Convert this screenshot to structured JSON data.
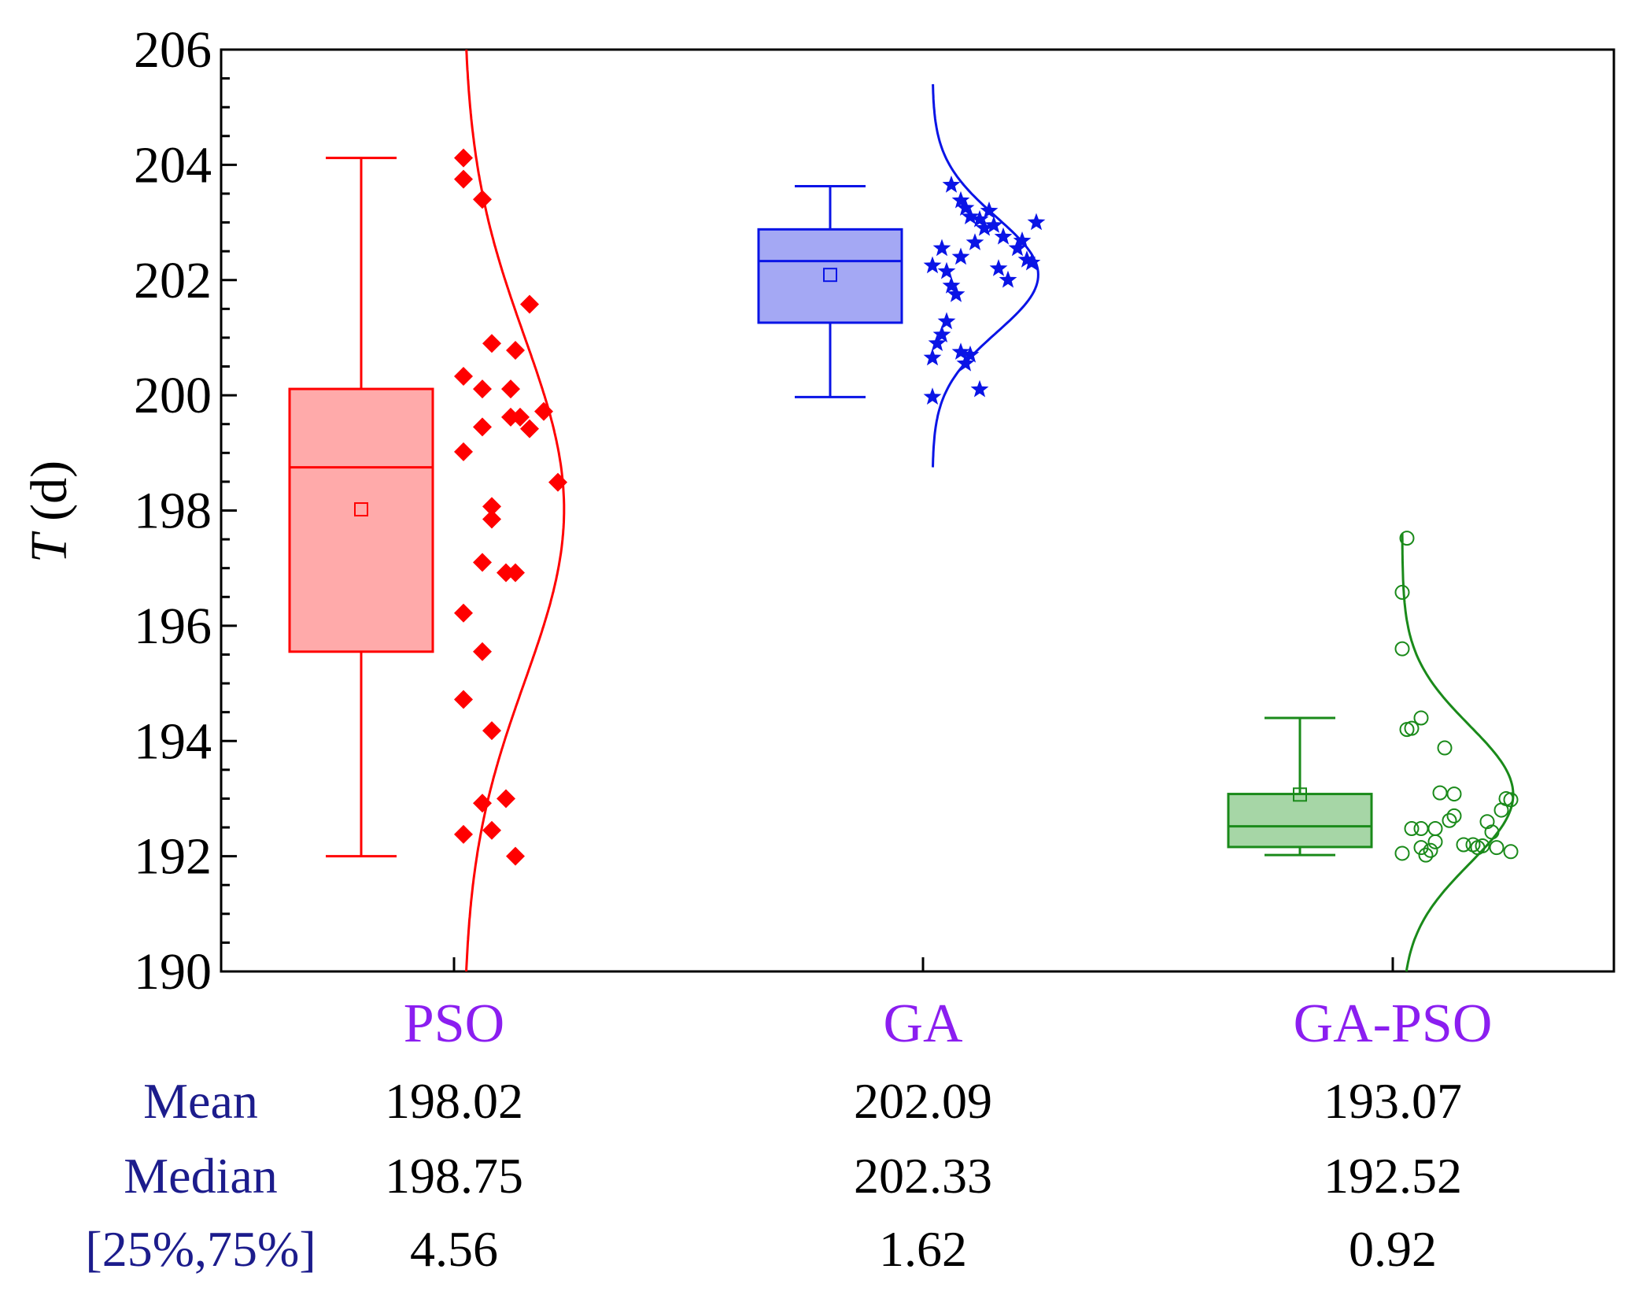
{
  "chart_data": {
    "type": "box",
    "ylabel_italic": "T",
    "ylabel_rest": " (d)",
    "ylim": [
      190,
      206
    ],
    "yticks": [
      190,
      192,
      194,
      196,
      198,
      200,
      202,
      204,
      206
    ],
    "category_color": "#8b1ef0",
    "categories": [
      {
        "name": "PSO",
        "color": "#ff0000",
        "fill": "#ffaaaa",
        "marker": "diamond",
        "box": {
          "whisker_low": 192.0,
          "q1": 195.55,
          "median": 198.75,
          "q3": 200.11,
          "whisker_high": 204.12,
          "mean": 198.02
        },
        "dist_mean": 198.02,
        "dist_sd": 3.0,
        "dist_peak_offset": 0.213,
        "dist_range": [
          190,
          206
        ],
        "points": [
          [
            0.0,
            204.12
          ],
          [
            0.0,
            203.75
          ],
          [
            0.04,
            203.4
          ],
          [
            0.14,
            201.58
          ],
          [
            0.06,
            200.9
          ],
          [
            0.11,
            200.78
          ],
          [
            0.0,
            200.33
          ],
          [
            0.04,
            200.11
          ],
          [
            0.1,
            200.11
          ],
          [
            0.17,
            199.72
          ],
          [
            0.1,
            199.62
          ],
          [
            0.12,
            199.62
          ],
          [
            0.14,
            199.42
          ],
          [
            0.04,
            199.45
          ],
          [
            0.0,
            199.02
          ],
          [
            0.2,
            198.49
          ],
          [
            0.06,
            198.07
          ],
          [
            0.06,
            197.85
          ],
          [
            0.04,
            197.1
          ],
          [
            0.09,
            196.92
          ],
          [
            0.11,
            196.92
          ],
          [
            0.0,
            196.22
          ],
          [
            0.04,
            195.55
          ],
          [
            0.0,
            194.72
          ],
          [
            0.06,
            194.18
          ],
          [
            0.09,
            193.0
          ],
          [
            0.04,
            192.92
          ],
          [
            0.0,
            192.38
          ],
          [
            0.06,
            192.45
          ],
          [
            0.11,
            192.0
          ]
        ]
      },
      {
        "name": "GA",
        "color": "#0a14e6",
        "fill": "#a4a8f4",
        "marker": "star",
        "box": {
          "whisker_low": 199.97,
          "q1": 201.26,
          "median": 202.33,
          "q3": 202.88,
          "whisker_high": 203.63,
          "mean": 202.09
        },
        "dist_mean": 202.09,
        "dist_sd": 1.0,
        "dist_peak_offset": 0.224,
        "dist_range": [
          198.75,
          205.4
        ],
        "points": [
          [
            0.04,
            203.65
          ],
          [
            0.06,
            203.38
          ],
          [
            0.07,
            203.25
          ],
          [
            0.12,
            203.2
          ],
          [
            0.08,
            203.1
          ],
          [
            0.1,
            203.05
          ],
          [
            0.22,
            203.0
          ],
          [
            0.13,
            202.95
          ],
          [
            0.11,
            202.9
          ],
          [
            0.15,
            202.75
          ],
          [
            0.09,
            202.65
          ],
          [
            0.19,
            202.68
          ],
          [
            0.18,
            202.55
          ],
          [
            0.02,
            202.55
          ],
          [
            0.06,
            202.4
          ],
          [
            0.2,
            202.35
          ],
          [
            0.21,
            202.3
          ],
          [
            0.0,
            202.25
          ],
          [
            0.03,
            202.15
          ],
          [
            0.14,
            202.2
          ],
          [
            0.16,
            202.0
          ],
          [
            0.04,
            201.9
          ],
          [
            0.05,
            201.75
          ],
          [
            0.03,
            201.28
          ],
          [
            0.02,
            201.05
          ],
          [
            0.01,
            200.9
          ],
          [
            0.06,
            200.75
          ],
          [
            0.08,
            200.7
          ],
          [
            0.0,
            200.65
          ],
          [
            0.07,
            200.55
          ],
          [
            0.1,
            200.1
          ],
          [
            0.0,
            199.97
          ]
        ]
      },
      {
        "name": "GA-PSO",
        "color": "#1a8a1a",
        "fill": "#a6d6a6",
        "marker": "circle",
        "box": {
          "whisker_low": 192.02,
          "q1": 192.16,
          "median": 192.52,
          "q3": 193.08,
          "whisker_high": 194.4,
          "mean": 193.07
        },
        "dist_mean": 193.07,
        "dist_sd": 1.2,
        "dist_peak_offset": 0.235,
        "dist_range": [
          190,
          197.6
        ],
        "points": [
          [
            0.01,
            197.52
          ],
          [
            0.0,
            196.58
          ],
          [
            0.0,
            195.6
          ],
          [
            0.04,
            194.4
          ],
          [
            0.02,
            194.22
          ],
          [
            0.01,
            194.2
          ],
          [
            0.09,
            193.88
          ],
          [
            0.08,
            193.1
          ],
          [
            0.11,
            193.08
          ],
          [
            0.22,
            193.0
          ],
          [
            0.23,
            192.98
          ],
          [
            0.21,
            192.8
          ],
          [
            0.11,
            192.7
          ],
          [
            0.1,
            192.62
          ],
          [
            0.18,
            192.6
          ],
          [
            0.02,
            192.48
          ],
          [
            0.04,
            192.48
          ],
          [
            0.07,
            192.48
          ],
          [
            0.19,
            192.42
          ],
          [
            0.07,
            192.25
          ],
          [
            0.13,
            192.2
          ],
          [
            0.15,
            192.2
          ],
          [
            0.17,
            192.18
          ],
          [
            0.16,
            192.15
          ],
          [
            0.2,
            192.15
          ],
          [
            0.04,
            192.15
          ],
          [
            0.06,
            192.1
          ],
          [
            0.0,
            192.05
          ],
          [
            0.05,
            192.02
          ],
          [
            0.23,
            192.08
          ]
        ]
      }
    ],
    "stats": [
      {
        "label": "Mean",
        "values": [
          "198.02",
          "202.09",
          "193.07"
        ]
      },
      {
        "label": "Median",
        "values": [
          "198.75",
          "202.33",
          "192.52"
        ]
      },
      {
        "label": "[25%,75%]",
        "values": [
          "4.56",
          "1.62",
          "0.92"
        ]
      }
    ]
  }
}
